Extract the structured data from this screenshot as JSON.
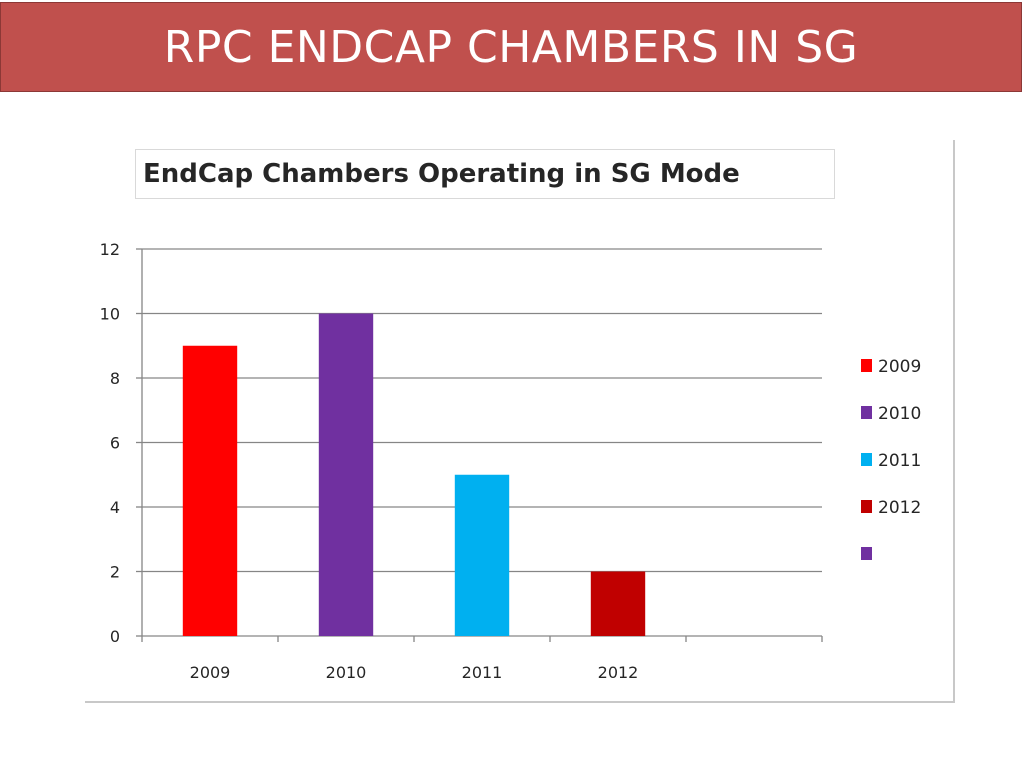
{
  "slide": {
    "title": "RPC ENDCAP CHAMBERS IN SG"
  },
  "chart_data": {
    "type": "bar",
    "title": "EndCap Chambers Operating in SG Mode",
    "xlabel": "",
    "ylabel": "",
    "categories": [
      "2009",
      "2010",
      "2011",
      "2012"
    ],
    "values": [
      9,
      10,
      5,
      2
    ],
    "colors": [
      "#ff0000",
      "#7030a0",
      "#00b0f0",
      "#c00000"
    ],
    "empty_slots_after": 1,
    "ylim": [
      0,
      12
    ],
    "yticks": [
      "0",
      "2",
      "4",
      "6",
      "8",
      "10",
      "12"
    ],
    "grid": true,
    "legend": {
      "position": "right",
      "entries": [
        {
          "label": "2009",
          "color": "#ff0000"
        },
        {
          "label": "2010",
          "color": "#7030a0"
        },
        {
          "label": "2011",
          "color": "#00b0f0"
        },
        {
          "label": "2012",
          "color": "#c00000"
        },
        {
          "label": "",
          "color": "#7030a0"
        }
      ]
    }
  }
}
